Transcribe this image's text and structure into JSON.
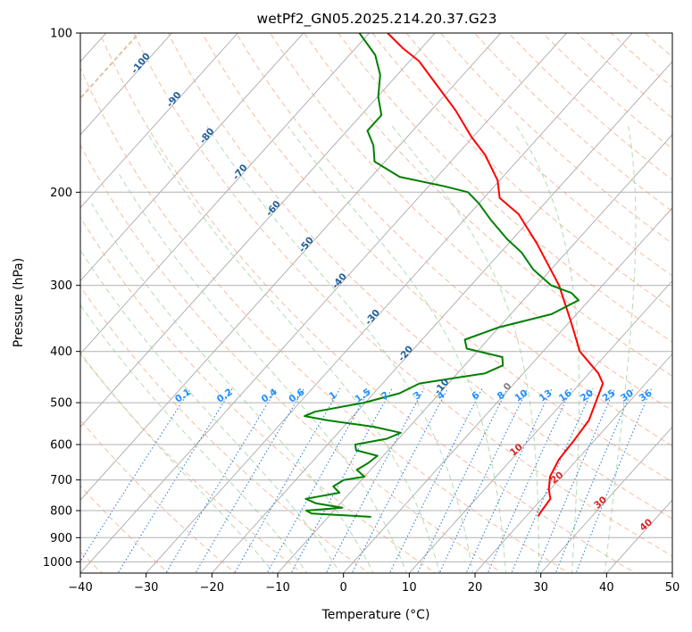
{
  "chart_data": {
    "type": "line",
    "subtype": "skew-t log-p diagram",
    "title": "wetPf2_GN05.2025.214.20.37.G23",
    "xlabel": "Temperature (°C)",
    "ylabel": "Pressure (hPa)",
    "xlim": [
      -40,
      50
    ],
    "ylim": [
      1050,
      100
    ],
    "y_scale": "log",
    "grid": true,
    "x_ticks": [
      -40,
      -30,
      -20,
      -10,
      0,
      10,
      20,
      30,
      40,
      50
    ],
    "x_tick_labels": [
      "−40",
      "−30",
      "−20",
      "−10",
      "0",
      "10",
      "20",
      "30",
      "40",
      "50"
    ],
    "y_ticks": [
      1000,
      900,
      800,
      700,
      600,
      500,
      400,
      300,
      200,
      100
    ],
    "y_tick_labels": [
      "1000",
      "900",
      "800",
      "700",
      "600",
      "500",
      "400",
      "300",
      "200",
      "100"
    ],
    "colors": {
      "temperature": "#ff0000",
      "dewpoint": "#008000",
      "isotherm": "#a0a0a0",
      "dry_adiabat": "#f4a582",
      "moist_adiabat": "#9fd39f",
      "mixing_ratio": "#1f77d4",
      "theta_e_curve": "#d8b48c",
      "isotherm_label": "#1f5f99",
      "mixing_ratio_label": "#1e90ff",
      "dry_adiabat_label": "#d62728",
      "zero_label": "#808080"
    },
    "series": [
      {
        "name": "",
        "role": "temperature",
        "points": [
          {
            "p": 820,
            "t": 21.8
          },
          {
            "p": 800,
            "t": 21.6
          },
          {
            "p": 760,
            "t": 21.3
          },
          {
            "p": 730,
            "t": 19.8
          },
          {
            "p": 690,
            "t": 18.2
          },
          {
            "p": 640,
            "t": 17.2
          },
          {
            "p": 590,
            "t": 16.9
          },
          {
            "p": 540,
            "t": 16.4
          },
          {
            "p": 500,
            "t": 15.0
          },
          {
            "p": 460,
            "t": 13.5
          },
          {
            "p": 440,
            "t": 11.4
          },
          {
            "p": 400,
            "t": 5.6
          },
          {
            "p": 350,
            "t": 0.0
          },
          {
            "p": 300,
            "t": -6.6
          },
          {
            "p": 250,
            "t": -15.7
          },
          {
            "p": 220,
            "t": -22.5
          },
          {
            "p": 205,
            "t": -27.6
          },
          {
            "p": 190,
            "t": -30.3
          },
          {
            "p": 170,
            "t": -35.7
          },
          {
            "p": 157,
            "t": -40.3
          },
          {
            "p": 140,
            "t": -46.3
          },
          {
            "p": 125,
            "t": -52.8
          },
          {
            "p": 113,
            "t": -58.6
          },
          {
            "p": 107,
            "t": -62.7
          },
          {
            "p": 100,
            "t": -67.2
          }
        ]
      },
      {
        "name": "",
        "role": "dewpoint",
        "points": [
          {
            "p": 822,
            "t": -3.5
          },
          {
            "p": 810,
            "t": -13.0
          },
          {
            "p": 800,
            "t": -14.2
          },
          {
            "p": 790,
            "t": -9.1
          },
          {
            "p": 775,
            "t": -13.7
          },
          {
            "p": 760,
            "t": -15.9
          },
          {
            "p": 740,
            "t": -11.6
          },
          {
            "p": 720,
            "t": -13.4
          },
          {
            "p": 700,
            "t": -12.7
          },
          {
            "p": 690,
            "t": -10.0
          },
          {
            "p": 670,
            "t": -12.1
          },
          {
            "p": 650,
            "t": -11.3
          },
          {
            "p": 630,
            "t": -10.9
          },
          {
            "p": 615,
            "t": -14.9
          },
          {
            "p": 600,
            "t": -15.8
          },
          {
            "p": 585,
            "t": -11.8
          },
          {
            "p": 570,
            "t": -10.5
          },
          {
            "p": 555,
            "t": -15.5
          },
          {
            "p": 540,
            "t": -23.3
          },
          {
            "p": 530,
            "t": -27.4
          },
          {
            "p": 520,
            "t": -26.4
          },
          {
            "p": 500,
            "t": -20.2
          },
          {
            "p": 480,
            "t": -16.1
          },
          {
            "p": 460,
            "t": -14.4
          },
          {
            "p": 440,
            "t": -5.8
          },
          {
            "p": 425,
            "t": -4.2
          },
          {
            "p": 410,
            "t": -5.4
          },
          {
            "p": 395,
            "t": -12.0
          },
          {
            "p": 380,
            "t": -13.5
          },
          {
            "p": 360,
            "t": -10.0
          },
          {
            "p": 340,
            "t": -3.8
          },
          {
            "p": 320,
            "t": -1.6
          },
          {
            "p": 310,
            "t": -3.7
          },
          {
            "p": 300,
            "t": -7.8
          },
          {
            "p": 280,
            "t": -12.7
          },
          {
            "p": 260,
            "t": -16.8
          },
          {
            "p": 245,
            "t": -20.9
          },
          {
            "p": 225,
            "t": -26.1
          },
          {
            "p": 210,
            "t": -30.0
          },
          {
            "p": 200,
            "t": -33.2
          },
          {
            "p": 195,
            "t": -37.5
          },
          {
            "p": 187,
            "t": -45.7
          },
          {
            "p": 175,
            "t": -51.6
          },
          {
            "p": 163,
            "t": -54.0
          },
          {
            "p": 153,
            "t": -56.9
          },
          {
            "p": 143,
            "t": -56.9
          },
          {
            "p": 132,
            "t": -59.9
          },
          {
            "p": 120,
            "t": -62.6
          },
          {
            "p": 110,
            "t": -66.1
          },
          {
            "p": 100,
            "t": -71.5
          }
        ]
      }
    ],
    "isotherm_labels": [
      {
        "t": -100,
        "text": "-100"
      },
      {
        "t": -90,
        "text": "-90"
      },
      {
        "t": -80,
        "text": "-80"
      },
      {
        "t": -70,
        "text": "-70"
      },
      {
        "t": -60,
        "text": "-60"
      },
      {
        "t": -50,
        "text": "-50"
      },
      {
        "t": -40,
        "text": "-40"
      },
      {
        "t": -30,
        "text": "-30"
      },
      {
        "t": -20,
        "text": "-20"
      },
      {
        "t": -10,
        "text": "-10"
      },
      {
        "t": 0,
        "text": "0"
      }
    ],
    "mixing_ratio_labels": [
      {
        "w": 0.1,
        "text": "0.1"
      },
      {
        "w": 0.2,
        "text": "0.2"
      },
      {
        "w": 0.4,
        "text": "0.4"
      },
      {
        "w": 0.6,
        "text": "0.6"
      },
      {
        "w": 1,
        "text": "1"
      },
      {
        "w": 1.5,
        "text": "1.5"
      },
      {
        "w": 2,
        "text": "2"
      },
      {
        "w": 3,
        "text": "3"
      },
      {
        "w": 4,
        "text": "4"
      },
      {
        "w": 6,
        "text": "6"
      },
      {
        "w": 8,
        "text": "8"
      },
      {
        "w": 10,
        "text": "10"
      },
      {
        "w": 13,
        "text": "13"
      },
      {
        "w": 16,
        "text": "16"
      },
      {
        "w": 20,
        "text": "20"
      },
      {
        "w": 25,
        "text": "25"
      },
      {
        "w": 30,
        "text": "30"
      },
      {
        "w": 36,
        "text": "36"
      }
    ],
    "dry_adiabat_labels": [
      {
        "t": 10,
        "text": "10"
      },
      {
        "t": 20,
        "text": "20"
      },
      {
        "t": 30,
        "text": "30"
      },
      {
        "t": 40,
        "text": "40"
      }
    ]
  }
}
